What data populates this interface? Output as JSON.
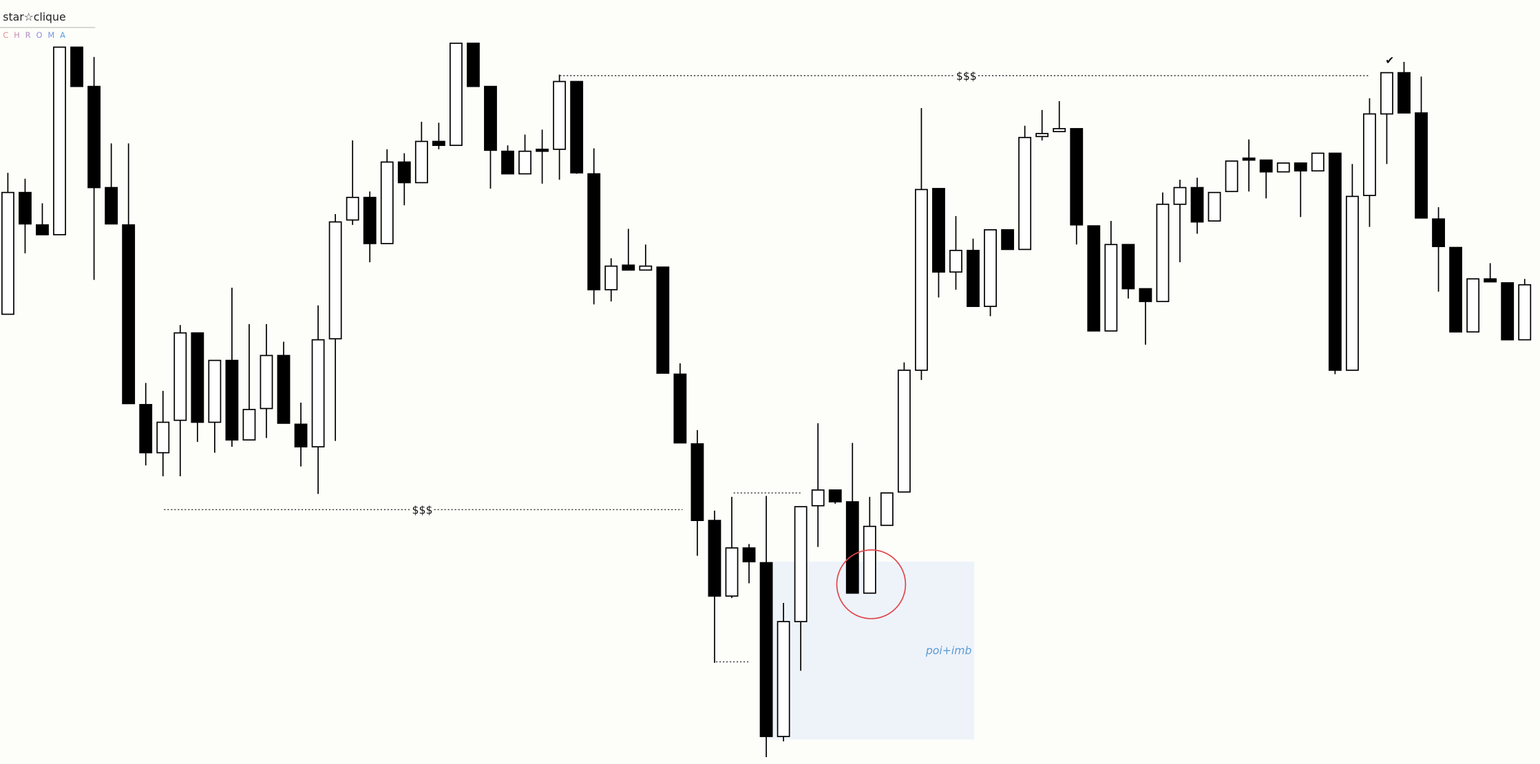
{
  "chart_data": {
    "type": "candlestick",
    "brand": "star☆clique",
    "brand_sub": "C H R O M A",
    "annotations": {
      "upper_liquidity": "$$$",
      "lower_liquidity": "$$$",
      "zone": "poi+imb",
      "check": "✔"
    },
    "up_color": "#ffffff",
    "down_color": "#000000",
    "ylim": [
      0,
      778
    ],
    "open": [
      458,
      582,
      549,
      539,
      730,
      690,
      587,
      549,
      366,
      317,
      350,
      439,
      348,
      411,
      330,
      362,
      416,
      346,
      323,
      433,
      554,
      577,
      530,
      613,
      592,
      634,
      630,
      734,
      690,
      624,
      601,
      626,
      626,
      695,
      601,
      483,
      508,
      503,
      506,
      397,
      326,
      248,
      171,
      220,
      205,
      28,
      145,
      263,
      279,
      267,
      174,
      243,
      277,
      401,
      586,
      501,
      523,
      466,
      544,
      524,
      639,
      644,
      647,
      548,
      441,
      529,
      484,
      471,
      570,
      587,
      553,
      583,
      617,
      615,
      603,
      612,
      604,
      622,
      401,
      579,
      662,
      704,
      663,
      555,
      526,
      440,
      494,
      490,
      432
    ],
    "high": [
      602,
      596,
      571,
      730,
      730,
      720,
      632,
      632,
      388,
      380,
      447,
      439,
      411,
      485,
      448,
      448,
      430,
      368,
      467,
      560,
      635,
      583,
      626,
      622,
      654,
      653,
      734,
      734,
      690,
      630,
      641,
      646,
      702,
      695,
      627,
      515,
      545,
      529,
      506,
      408,
      340,
      258,
      272,
      224,
      273,
      164,
      262,
      347,
      279,
      327,
      272,
      276,
      409,
      668,
      586,
      558,
      535,
      544,
      544,
      650,
      666,
      675,
      647,
      548,
      553,
      529,
      484,
      582,
      595,
      597,
      582,
      614,
      636,
      615,
      612,
      612,
      622,
      622,
      611,
      678,
      704,
      715,
      700,
      567,
      526,
      494,
      510,
      490,
      494
    ],
    "low": [
      458,
      520,
      539,
      539,
      690,
      493,
      550,
      367,
      304,
      293,
      293,
      328,
      317,
      323,
      330,
      332,
      347,
      303,
      275,
      329,
      549,
      511,
      530,
      569,
      592,
      626,
      630,
      690,
      586,
      601,
      601,
      591,
      595,
      601,
      468,
      471,
      503,
      503,
      398,
      327,
      212,
      103,
      169,
      184,
      7,
      23,
      95,
      221,
      265,
      174,
      174,
      243,
      277,
      391,
      475,
      483,
      466,
      456,
      524,
      524,
      635,
      644,
      529,
      441,
      441,
      474,
      427,
      471,
      511,
      540,
      553,
      583,
      583,
      576,
      603,
      557,
      604,
      397,
      401,
      547,
      611,
      663,
      556,
      481,
      440,
      440,
      491,
      432,
      432
    ],
    "close": [
      582,
      550,
      539,
      730,
      690,
      587,
      550,
      367,
      317,
      348,
      439,
      348,
      411,
      330,
      361,
      416,
      347,
      323,
      432,
      552,
      577,
      530,
      613,
      592,
      634,
      630,
      734,
      690,
      625,
      601,
      624,
      624,
      695,
      602,
      483,
      507,
      503,
      507,
      398,
      327,
      248,
      171,
      220,
      206,
      28,
      145,
      262,
      279,
      267,
      174,
      242,
      276,
      401,
      585,
      501,
      523,
      466,
      544,
      524,
      638,
      642,
      647,
      549,
      441,
      529,
      484,
      471,
      570,
      587,
      552,
      582,
      614,
      615,
      603,
      612,
      604,
      622,
      401,
      578,
      662,
      704,
      663,
      556,
      527,
      440,
      494,
      491,
      432,
      488
    ]
  }
}
